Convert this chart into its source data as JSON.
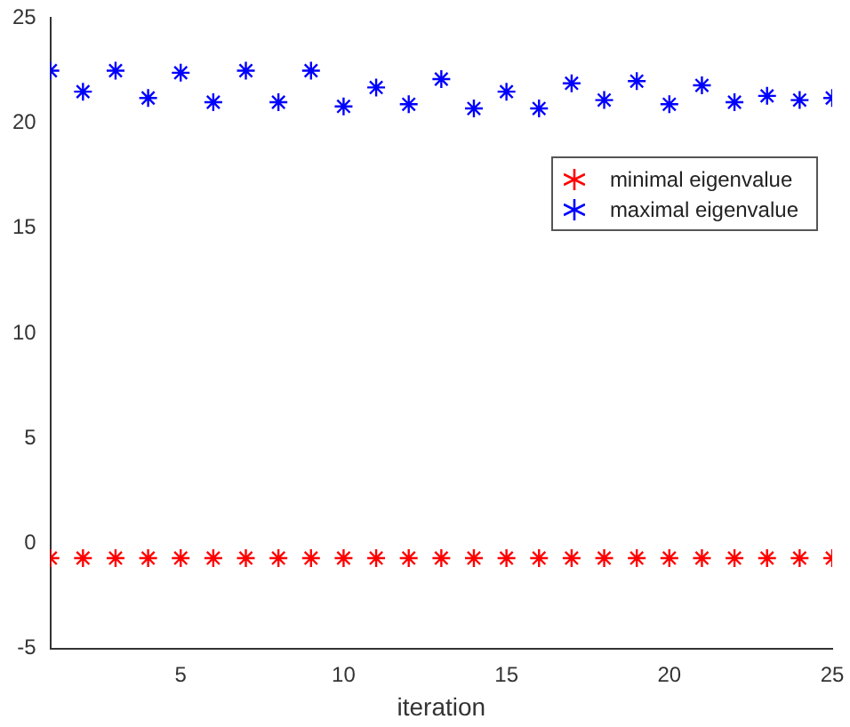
{
  "chart_data": {
    "type": "scatter",
    "xlabel": "iteration",
    "x": [
      1,
      2,
      3,
      4,
      5,
      6,
      7,
      8,
      9,
      10,
      11,
      12,
      13,
      14,
      15,
      16,
      17,
      18,
      19,
      20,
      21,
      22,
      23,
      24,
      25
    ],
    "series": [
      {
        "name": "minimal eigenvalue",
        "color": "#ff0000",
        "values": [
          -0.7,
          -0.7,
          -0.7,
          -0.7,
          -0.7,
          -0.7,
          -0.7,
          -0.7,
          -0.7,
          -0.7,
          -0.7,
          -0.7,
          -0.7,
          -0.7,
          -0.7,
          -0.7,
          -0.7,
          -0.7,
          -0.7,
          -0.7,
          -0.7,
          -0.7,
          -0.7,
          -0.7,
          -0.7
        ]
      },
      {
        "name": "maximal eigenvalue",
        "color": "#0000ff",
        "values": [
          22.5,
          21.5,
          22.5,
          21.2,
          22.4,
          21.0,
          22.5,
          21.0,
          22.5,
          20.8,
          21.7,
          20.9,
          22.1,
          20.7,
          21.5,
          20.7,
          21.9,
          21.1,
          22.0,
          20.9,
          21.8,
          21.0,
          21.3,
          21.1,
          21.2
        ]
      }
    ],
    "xlim": [
      1,
      25
    ],
    "xticks": [
      5,
      10,
      15,
      20,
      25
    ],
    "ylim": [
      -5,
      25
    ],
    "yticks": [
      -5,
      0,
      5,
      10,
      15,
      20,
      25
    ],
    "grid": false,
    "legend": "top right",
    "marker": "cross"
  }
}
